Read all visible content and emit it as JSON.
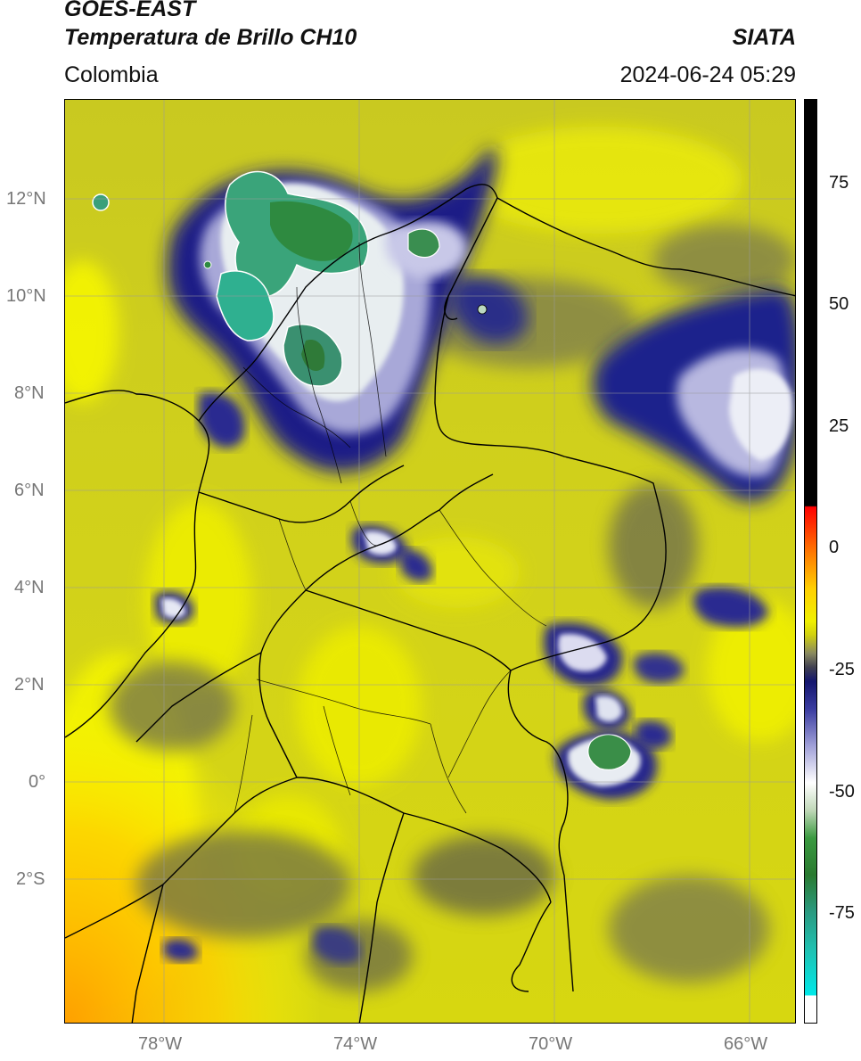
{
  "header": {
    "satellite": "GOES-EAST",
    "product": "Temperatura de Brillo CH10",
    "region": "Colombia",
    "agency": "SIATA",
    "datetime": "2024-06-24 05:29"
  },
  "map": {
    "lat_labels": [
      "12°N",
      "10°N",
      "8°N",
      "6°N",
      "4°N",
      "2°N",
      "0°",
      "2°S"
    ],
    "lon_labels": [
      "78°W",
      "74°W",
      "70°W",
      "66°W"
    ],
    "colors": {
      "background": "#d4d41a",
      "land_border": "#000000",
      "gridline": "#9a9a9a"
    }
  },
  "colorbar": {
    "tick_labels": [
      "75",
      "50",
      "25",
      "0",
      "-25",
      "-50",
      "-75"
    ]
  }
}
